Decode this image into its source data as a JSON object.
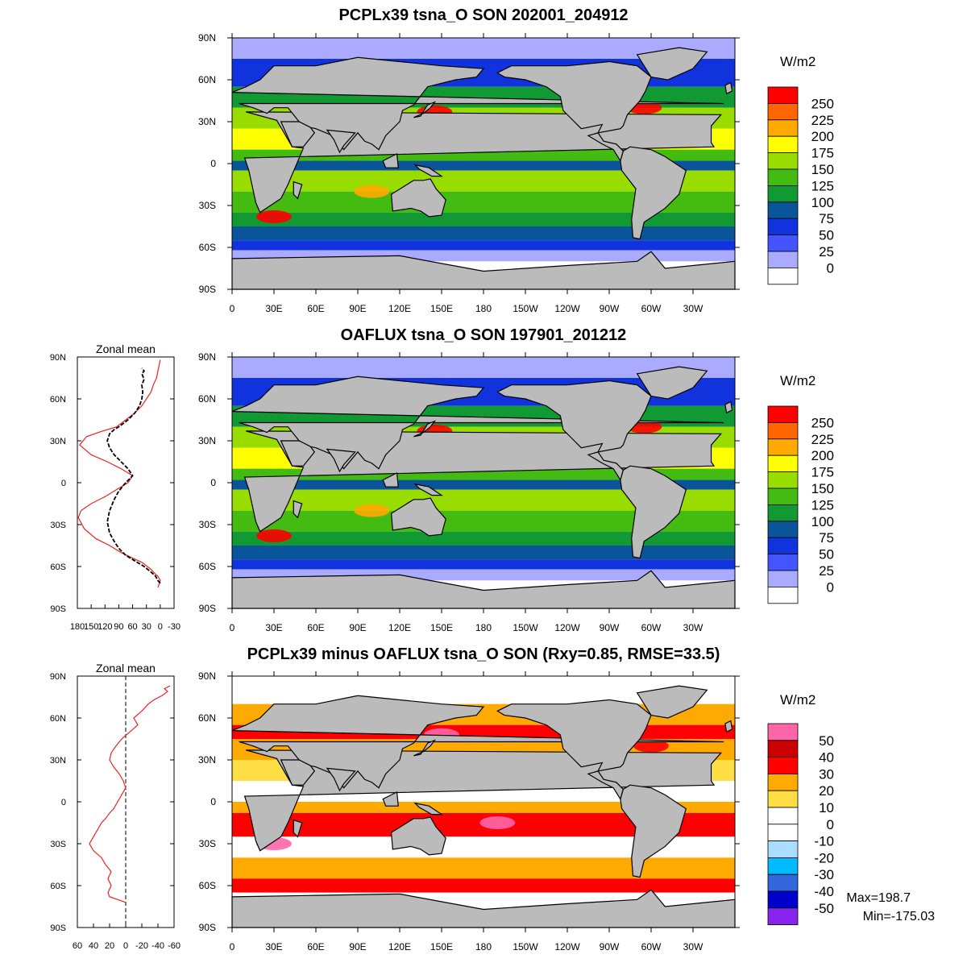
{
  "panels": [
    {
      "title": "PCPLx39 tsna_O SON 202001_204912",
      "unit": "W/m2",
      "colorbar": {
        "labels": [
          "250",
          "225",
          "200",
          "175",
          "150",
          "125",
          "100",
          "75",
          "50",
          "25",
          "0"
        ],
        "colors": [
          "#ff0000",
          "#ff6600",
          "#ffaa00",
          "#ffff00",
          "#99dd00",
          "#44bb11",
          "#119933",
          "#0a5599",
          "#1133dd",
          "#4455ff",
          "#aaaaff",
          "#ffffff"
        ]
      }
    },
    {
      "title": "OAFLUX tsna_O SON 197901_201212",
      "unit": "W/m2",
      "colorbar": {
        "labels": [
          "250",
          "225",
          "200",
          "175",
          "150",
          "125",
          "100",
          "75",
          "50",
          "25",
          "0"
        ],
        "colors": [
          "#ff0000",
          "#ff6600",
          "#ffaa00",
          "#ffff00",
          "#99dd00",
          "#44bb11",
          "#119933",
          "#0a5599",
          "#1133dd",
          "#4455ff",
          "#aaaaff",
          "#ffffff"
        ]
      }
    },
    {
      "title": "PCPLx39 minus OAFLUX tsna_O SON (Rxy=0.85, RMSE=33.5)",
      "unit": "W/m2",
      "colorbar": {
        "labels": [
          "50",
          "40",
          "30",
          "20",
          "10",
          "0",
          "-10",
          "-20",
          "-30",
          "-40",
          "-50"
        ],
        "colors": [
          "#ff66aa",
          "#cc0000",
          "#ff0000",
          "#ffaa00",
          "#ffdd44",
          "#ffffff",
          "#ffffff",
          "#aaddff",
          "#00bbff",
          "#3366dd",
          "#0000cc",
          "#8822ee"
        ]
      },
      "max_label": "Max=198.7",
      "min_label": "Min=-175.03"
    }
  ],
  "map_axes": {
    "lat_ticks": [
      "90N",
      "60N",
      "30N",
      "0",
      "30S",
      "60S",
      "90S"
    ],
    "lon_ticks": [
      "0",
      "30E",
      "60E",
      "90E",
      "120E",
      "150E",
      "180",
      "150W",
      "120W",
      "90W",
      "60W",
      "30W"
    ]
  },
  "zonal_panels": [
    {
      "title": "Zonal mean",
      "x_ticks": [
        "180",
        "150",
        "120",
        "90",
        "60",
        "30",
        "0",
        "-30"
      ]
    },
    {
      "title": "Zonal mean",
      "x_ticks": [
        "60",
        "40",
        "20",
        "0",
        "-20",
        "-40",
        "-60"
      ]
    }
  ],
  "colors": {
    "land": "#bbbbbb",
    "ocean_base": "#22aa22"
  },
  "chart_data": [
    {
      "type": "heatmap",
      "title": "PCPLx39 tsna_O SON 202001_204912",
      "x_range": [
        0,
        360
      ],
      "y_range": [
        -90,
        90
      ],
      "colorbar_levels": [
        0,
        25,
        50,
        75,
        100,
        125,
        150,
        175,
        200,
        225,
        250
      ]
    },
    {
      "type": "heatmap",
      "title": "OAFLUX tsna_O SON 197901_201212",
      "x_range": [
        0,
        360
      ],
      "y_range": [
        -90,
        90
      ],
      "colorbar_levels": [
        0,
        25,
        50,
        75,
        100,
        125,
        150,
        175,
        200,
        225,
        250
      ]
    },
    {
      "type": "heatmap",
      "title": "PCPLx39 minus OAFLUX tsna_O SON (Rxy=0.85, RMSE=33.5)",
      "x_range": [
        0,
        360
      ],
      "y_range": [
        -90,
        90
      ],
      "colorbar_levels": [
        -50,
        -40,
        -30,
        -20,
        -10,
        0,
        10,
        20,
        30,
        40,
        50
      ],
      "max": 198.7,
      "min": -175.03
    },
    {
      "type": "line",
      "title": "Zonal mean",
      "xlim": [
        180,
        -30
      ],
      "ylim": [
        -90,
        90
      ],
      "series": [
        {
          "name": "PCPLx39",
          "x": [
            5,
            2,
            0,
            5,
            12,
            20,
            28,
            40,
            60,
            85,
            110,
            140,
            165,
            178,
            172,
            150,
            120,
            95,
            70,
            60,
            85,
            115,
            150,
            175,
            160,
            125,
            95,
            75,
            55,
            40,
            30,
            20,
            15,
            8,
            5,
            0
          ],
          "y": [
            -75,
            -72,
            -70,
            -67,
            -65,
            -62,
            -60,
            -57,
            -54,
            -50,
            -45,
            -40,
            -33,
            -25,
            -20,
            -15,
            -10,
            -5,
            0,
            5,
            10,
            15,
            20,
            27,
            33,
            37,
            40,
            45,
            50,
            55,
            60,
            65,
            70,
            75,
            80,
            88
          ]
        },
        {
          "name": "OAFLUX",
          "x": [
            0,
            5,
            10,
            20,
            35,
            55,
            75,
            90,
            100,
            110,
            115,
            110,
            100,
            90,
            75,
            60,
            70,
            85,
            100,
            110,
            115,
            110,
            100,
            90,
            70,
            55,
            45,
            40,
            38,
            40,
            35,
            40,
            35,
            40
          ],
          "y": [
            -72,
            -70,
            -67,
            -64,
            -60,
            -56,
            -52,
            -47,
            -42,
            -36,
            -28,
            -20,
            -12,
            -6,
            0,
            5,
            10,
            15,
            20,
            25,
            30,
            35,
            38,
            40,
            45,
            50,
            55,
            60,
            65,
            70,
            74,
            78,
            80,
            82
          ]
        }
      ]
    },
    {
      "type": "line",
      "title": "Zonal mean",
      "xlim": [
        60,
        -60
      ],
      "ylim": [
        -90,
        90
      ],
      "series": [
        {
          "x": [
            0,
            10,
            20,
            22,
            18,
            22,
            18,
            25,
            30,
            40,
            45,
            40,
            35,
            30,
            25,
            20,
            15,
            10,
            5,
            0,
            3,
            8,
            15,
            20,
            18,
            12,
            5,
            -5,
            -15,
            -10,
            -20,
            -28,
            -35,
            -45,
            -52,
            -48,
            -55
          ],
          "y": [
            -72,
            -70,
            -68,
            -65,
            -60,
            -55,
            -50,
            -45,
            -40,
            -35,
            -30,
            -25,
            -20,
            -15,
            -12,
            -8,
            -5,
            0,
            5,
            10,
            15,
            20,
            25,
            30,
            35,
            40,
            45,
            50,
            55,
            60,
            65,
            70,
            73,
            76,
            79,
            81,
            83
          ]
        }
      ]
    }
  ]
}
